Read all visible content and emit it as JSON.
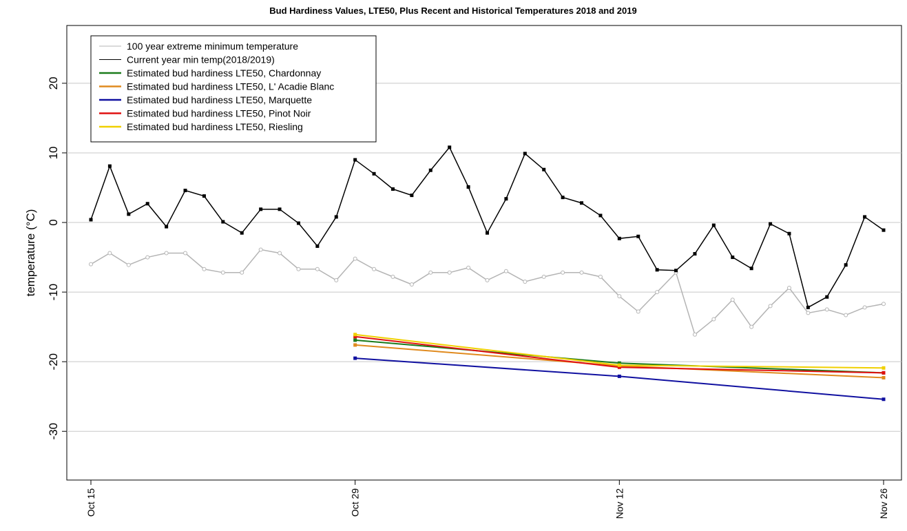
{
  "chart_data": {
    "type": "line",
    "title": "Bud Hardiness Values, LTE50, Plus Recent and Historical Temperatures 2018 and 2019",
    "y_label": "temperature (°C)",
    "categories": [
      "Oct 15",
      null,
      null,
      null,
      null,
      null,
      null,
      null,
      null,
      null,
      null,
      null,
      null,
      null,
      "Oct 29",
      null,
      null,
      null,
      null,
      null,
      null,
      null,
      null,
      null,
      null,
      null,
      null,
      null,
      "Nov 12",
      null,
      null,
      null,
      null,
      null,
      null,
      null,
      null,
      null,
      null,
      null,
      null,
      null,
      "Nov 26"
    ],
    "ylim": [
      -37,
      28.3
    ],
    "yticks": [
      -30,
      -20,
      -10,
      0,
      10,
      20
    ],
    "grid": true,
    "legend": "top-left",
    "series": [
      {
        "name": "100 year extreme minimum temperature",
        "color": "#b4b4b4",
        "marker": "open-circle",
        "values": [
          -6.0,
          -4.4,
          -6.1,
          -5.0,
          -4.4,
          -4.4,
          -6.7,
          -7.2,
          -7.2,
          -3.9,
          -4.4,
          -6.7,
          -6.7,
          -8.3,
          -5.2,
          -6.7,
          -7.8,
          -8.9,
          -7.2,
          -7.2,
          -6.5,
          -8.3,
          -7.0,
          -8.5,
          -7.8,
          -7.2,
          -7.2,
          -7.8,
          -10.6,
          -12.8,
          -10.0,
          -7.2,
          -16.1,
          -13.9,
          -11.1,
          -15.0,
          -12.0,
          -9.4,
          -13.0,
          -12.5,
          -13.3,
          -12.2,
          -11.7
        ]
      },
      {
        "name": "Current year min temp(2018/2019)",
        "color": "#000000",
        "marker": "square",
        "values": [
          0.4,
          8.1,
          1.2,
          2.7,
          -0.6,
          4.6,
          3.8,
          0.1,
          -1.5,
          1.9,
          1.9,
          -0.1,
          -3.4,
          0.8,
          9.0,
          7.0,
          4.8,
          3.9,
          7.5,
          10.8,
          5.1,
          -1.5,
          3.4,
          9.9,
          7.6,
          3.6,
          2.8,
          1.0,
          -2.3,
          -2.0,
          -6.8,
          -6.9,
          -4.5,
          -0.4,
          -5.0,
          -6.6,
          -0.2,
          -1.6,
          -12.2,
          -10.7,
          -6.1,
          0.8,
          -1.1
        ]
      },
      {
        "name": "Estimated bud hardiness LTE50, Chardonnay",
        "color": "#1a7a1a",
        "marker": "square",
        "x": [
          "Oct 29",
          "Nov 12",
          "Nov 26"
        ],
        "values": [
          -16.9,
          -20.2,
          -21.6
        ]
      },
      {
        "name": "Estimated bud hardiness LTE50, L' Acadie Blanc",
        "color": "#e08a1e",
        "marker": "square",
        "x": [
          "Oct 29",
          "Nov 12",
          "Nov 26"
        ],
        "values": [
          -17.6,
          -20.6,
          -22.3
        ]
      },
      {
        "name": "Estimated bud hardiness LTE50, Marquette",
        "color": "#1010a0",
        "marker": "square",
        "x": [
          "Oct 29",
          "Nov 12",
          "Nov 26"
        ],
        "values": [
          -19.5,
          -22.1,
          -25.4
        ]
      },
      {
        "name": "Estimated bud hardiness LTE50, Pinot Noir",
        "color": "#e01010",
        "marker": "square",
        "x": [
          "Oct 29",
          "Nov 12",
          "Nov 26"
        ],
        "values": [
          -16.4,
          -20.8,
          -21.6
        ]
      },
      {
        "name": "Estimated bud hardiness LTE50, Riesling",
        "color": "#f0d000",
        "marker": "square",
        "x": [
          "Oct 29",
          "Nov 12",
          "Nov 26"
        ],
        "values": [
          -16.1,
          -20.5,
          -20.9
        ]
      }
    ]
  }
}
